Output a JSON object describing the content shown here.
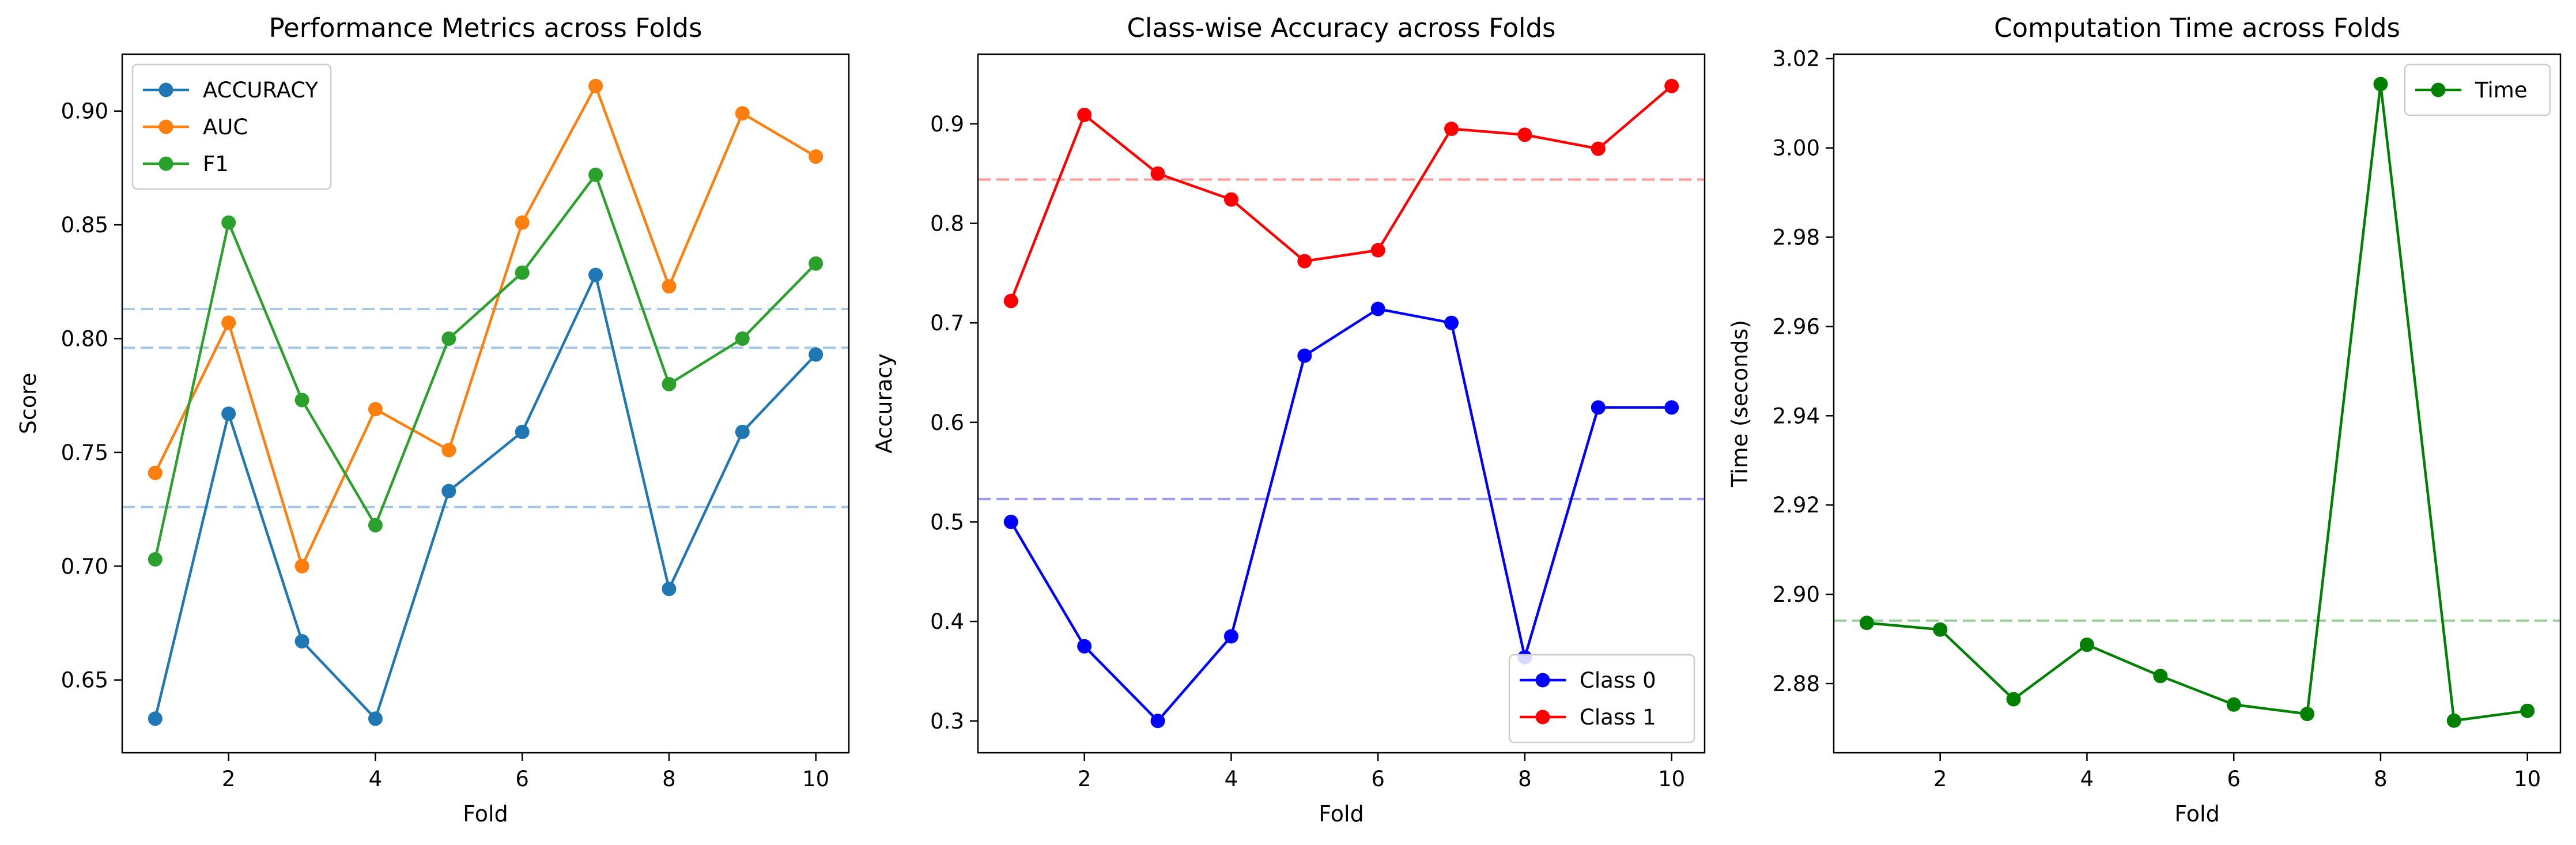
{
  "chart_data": [
    {
      "type": "line",
      "title": "Performance Metrics across Folds",
      "xlabel": "Fold",
      "ylabel": "Score",
      "x": [
        1,
        2,
        3,
        4,
        5,
        6,
        7,
        8,
        9,
        10
      ],
      "xlim": [
        0.55,
        10.45
      ],
      "ylim": [
        0.618,
        0.925
      ],
      "xticks": [
        2,
        4,
        6,
        8,
        10
      ],
      "yticks": [
        0.65,
        0.7,
        0.75,
        0.8,
        0.85,
        0.9
      ],
      "ytick_labels": [
        "0.65",
        "0.70",
        "0.75",
        "0.80",
        "0.85",
        "0.90"
      ],
      "legend_position": "upper-left",
      "grid": false,
      "series": [
        {
          "name": "ACCURACY",
          "color": "#1f77b4",
          "values": [
            0.633,
            0.767,
            0.667,
            0.633,
            0.733,
            0.759,
            0.828,
            0.69,
            0.759,
            0.793
          ]
        },
        {
          "name": "AUC",
          "color": "#ff7f0e",
          "values": [
            0.741,
            0.807,
            0.7,
            0.769,
            0.751,
            0.851,
            0.911,
            0.823,
            0.899,
            0.88
          ]
        },
        {
          "name": "F1",
          "color": "#2ca02c",
          "values": [
            0.703,
            0.851,
            0.773,
            0.718,
            0.8,
            0.829,
            0.872,
            0.78,
            0.8,
            0.833
          ]
        }
      ],
      "reference_lines": [
        {
          "y": 0.726,
          "color": "#a6c8e4"
        },
        {
          "y": 0.796,
          "color": "#a6c8e4"
        },
        {
          "y": 0.813,
          "color": "#a6c8e4"
        }
      ]
    },
    {
      "type": "line",
      "title": "Class-wise Accuracy across Folds",
      "xlabel": "Fold",
      "ylabel": "Accuracy",
      "x": [
        1,
        2,
        3,
        4,
        5,
        6,
        7,
        8,
        9,
        10
      ],
      "xlim": [
        0.55,
        10.45
      ],
      "ylim": [
        0.268,
        0.97
      ],
      "xticks": [
        2,
        4,
        6,
        8,
        10
      ],
      "yticks": [
        0.3,
        0.4,
        0.5,
        0.6,
        0.7,
        0.8,
        0.9
      ],
      "ytick_labels": [
        "0.3",
        "0.4",
        "0.5",
        "0.6",
        "0.7",
        "0.8",
        "0.9"
      ],
      "legend_position": "lower-right",
      "grid": false,
      "series": [
        {
          "name": "Class 0",
          "color": "#0000ff",
          "values": [
            0.5,
            0.375,
            0.3,
            0.385,
            0.667,
            0.714,
            0.7,
            0.364,
            0.615,
            0.615
          ]
        },
        {
          "name": "Class 1",
          "color": "#ff0000",
          "values": [
            0.722,
            0.909,
            0.85,
            0.824,
            0.762,
            0.773,
            0.895,
            0.889,
            0.875,
            0.938
          ]
        }
      ],
      "reference_lines": [
        {
          "y": 0.523,
          "color": "#9999ff"
        },
        {
          "y": 0.844,
          "color": "#ff9999"
        }
      ]
    },
    {
      "type": "line",
      "title": "Computation Time across Folds",
      "xlabel": "Fold",
      "ylabel": "Time (seconds)",
      "x": [
        1,
        2,
        3,
        4,
        5,
        6,
        7,
        8,
        9,
        10
      ],
      "xlim": [
        0.55,
        10.45
      ],
      "ylim": [
        2.8645,
        3.021
      ],
      "xticks": [
        2,
        4,
        6,
        8,
        10
      ],
      "yticks": [
        2.88,
        2.9,
        2.92,
        2.94,
        2.96,
        2.98,
        3.0,
        3.02
      ],
      "ytick_labels": [
        "2.88",
        "2.90",
        "2.92",
        "2.94",
        "2.96",
        "2.98",
        "3.00",
        "3.02"
      ],
      "legend_position": "upper-right",
      "grid": false,
      "series": [
        {
          "name": "Time",
          "color": "#008000",
          "values": [
            2.8936,
            2.8921,
            2.8765,
            2.8887,
            2.8817,
            2.8753,
            2.8732,
            3.0143,
            2.8717,
            2.8739
          ]
        }
      ],
      "reference_lines": [
        {
          "y": 2.8941,
          "color": "#99cc99"
        }
      ]
    }
  ]
}
